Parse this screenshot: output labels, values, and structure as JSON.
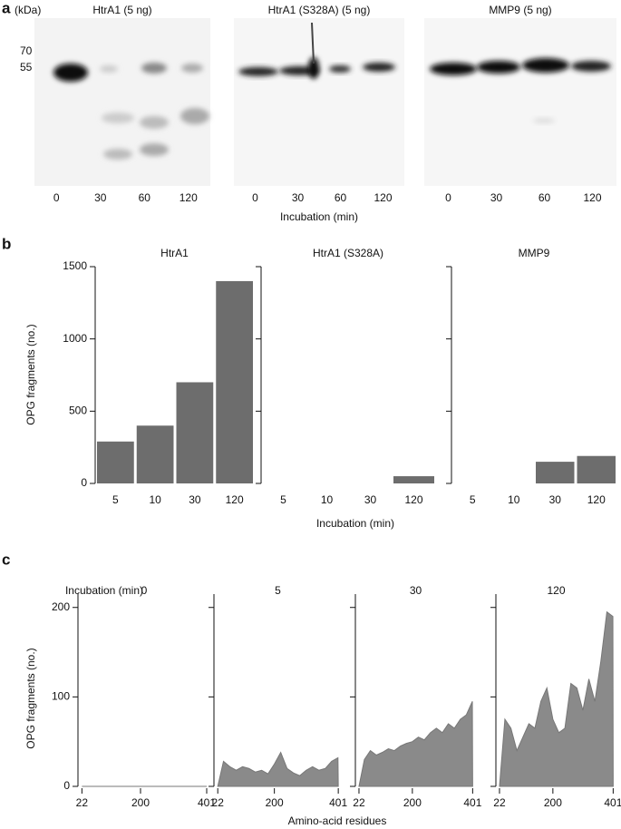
{
  "panel_labels": [
    "a",
    "b",
    "c"
  ],
  "blots": {
    "unit": "(kDa)",
    "markers": [
      70,
      55
    ],
    "titles": [
      "HtrA1 (5 ng)",
      "HtrA1 (S328A) (5 ng)",
      "MMP9 (5 ng)"
    ],
    "lanes": [
      0,
      30,
      60,
      120
    ],
    "xlabel": "Incubation (min)"
  },
  "bar_panel": {
    "xlabel": "Incubation (min)",
    "ylabel": "OPG fragments (no.)"
  },
  "area_panel": {
    "legend_title": "Incubation (min)",
    "xlabel": "Amino-acid residues",
    "ylabel": "OPG fragments (no.)"
  },
  "chart_data": [
    {
      "type": "bar",
      "title": "HtrA1",
      "categories": [
        "5",
        "10",
        "30",
        "120"
      ],
      "values": [
        290,
        400,
        700,
        1400
      ],
      "color": "#6d6d6d",
      "ylim": [
        0,
        1500
      ],
      "yticks": [
        0,
        500,
        1000,
        1500
      ],
      "ytick_labels": true
    },
    {
      "type": "bar",
      "title": "HtrA1 (S328A)",
      "categories": [
        "5",
        "10",
        "30",
        "120"
      ],
      "values": [
        0,
        0,
        0,
        50
      ],
      "color": "#6d6d6d",
      "ylim": [
        0,
        1500
      ],
      "yticks": [
        0,
        500,
        1000,
        1500
      ],
      "ytick_labels": false
    },
    {
      "type": "bar",
      "title": "MMP9",
      "categories": [
        "5",
        "10",
        "30",
        "120"
      ],
      "values": [
        0,
        0,
        150,
        190
      ],
      "color": "#6d6d6d",
      "ylim": [
        0,
        1500
      ],
      "yticks": [
        0,
        500,
        1000,
        1500
      ],
      "ytick_labels": false
    },
    {
      "type": "area",
      "title": "0",
      "x": [
        22,
        40,
        60,
        80,
        100,
        120,
        140,
        160,
        180,
        200,
        220,
        240,
        260,
        280,
        300,
        320,
        340,
        360,
        380,
        400,
        401
      ],
      "values": [
        0,
        0,
        0,
        0,
        0,
        0,
        0,
        0,
        0,
        0,
        0,
        0,
        0,
        0,
        0,
        0,
        0,
        0,
        0,
        0,
        0
      ],
      "color": "#8a8a8a",
      "xlim": [
        10,
        412
      ],
      "xticks": [
        22,
        200,
        401
      ],
      "ylim": [
        0,
        220
      ],
      "yticks": [
        0,
        100,
        200
      ],
      "ytick_labels": true
    },
    {
      "type": "area",
      "title": "5",
      "x": [
        22,
        40,
        60,
        80,
        100,
        120,
        140,
        160,
        180,
        200,
        220,
        240,
        260,
        280,
        300,
        320,
        340,
        360,
        380,
        400,
        401
      ],
      "values": [
        0,
        28,
        22,
        18,
        22,
        20,
        16,
        18,
        14,
        25,
        38,
        20,
        15,
        12,
        18,
        22,
        18,
        20,
        28,
        32,
        0
      ],
      "color": "#8a8a8a",
      "xlim": [
        10,
        412
      ],
      "xticks": [
        22,
        200,
        401
      ],
      "ylim": [
        0,
        220
      ],
      "yticks": [
        0,
        100,
        200
      ],
      "ytick_labels": false
    },
    {
      "type": "area",
      "title": "30",
      "x": [
        22,
        40,
        60,
        80,
        100,
        120,
        140,
        160,
        180,
        200,
        220,
        240,
        260,
        280,
        300,
        320,
        340,
        360,
        380,
        400,
        401
      ],
      "values": [
        0,
        30,
        40,
        35,
        38,
        42,
        40,
        45,
        48,
        50,
        55,
        52,
        60,
        65,
        60,
        70,
        65,
        75,
        80,
        95,
        0
      ],
      "color": "#8a8a8a",
      "xlim": [
        10,
        412
      ],
      "xticks": [
        22,
        200,
        401
      ],
      "ylim": [
        0,
        220
      ],
      "yticks": [
        0,
        100,
        200
      ],
      "ytick_labels": false
    },
    {
      "type": "area",
      "title": "120",
      "x": [
        22,
        40,
        60,
        80,
        100,
        120,
        140,
        160,
        180,
        200,
        220,
        240,
        260,
        280,
        300,
        320,
        340,
        360,
        380,
        400,
        401
      ],
      "values": [
        0,
        75,
        65,
        40,
        55,
        70,
        65,
        95,
        110,
        75,
        60,
        65,
        115,
        110,
        85,
        120,
        95,
        140,
        195,
        190,
        0
      ],
      "color": "#8a8a8a",
      "xlim": [
        10,
        412
      ],
      "xticks": [
        22,
        200,
        401
      ],
      "ylim": [
        0,
        220
      ],
      "yticks": [
        0,
        100,
        200
      ],
      "ytick_labels": false
    }
  ]
}
